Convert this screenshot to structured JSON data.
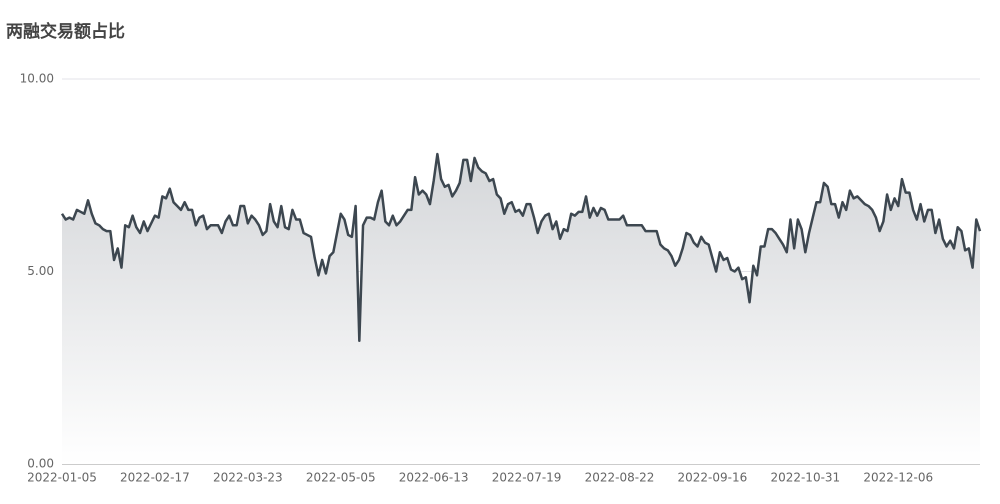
{
  "chart_data": {
    "type": "area-line",
    "title": "两融交易额占比",
    "categories": [
      "2022-01-05",
      null,
      null,
      null,
      null,
      null,
      null,
      null,
      null,
      null,
      null,
      null,
      null,
      null,
      null,
      null,
      null,
      null,
      null,
      null,
      null,
      null,
      null,
      null,
      null,
      "2022-02-17",
      null,
      null,
      null,
      null,
      null,
      null,
      null,
      null,
      null,
      null,
      null,
      null,
      null,
      null,
      null,
      null,
      null,
      null,
      null,
      null,
      null,
      null,
      null,
      null,
      "2022-03-23",
      null,
      null,
      null,
      null,
      null,
      null,
      null,
      null,
      null,
      null,
      null,
      null,
      null,
      null,
      null,
      null,
      null,
      null,
      null,
      null,
      null,
      null,
      null,
      null,
      "2022-05-05",
      null,
      null,
      null,
      null,
      null,
      null,
      null,
      null,
      null,
      null,
      null,
      null,
      null,
      null,
      null,
      null,
      null,
      null,
      null,
      null,
      null,
      null,
      null,
      null,
      "2022-06-13",
      null,
      null,
      null,
      null,
      null,
      null,
      null,
      null,
      null,
      null,
      null,
      null,
      null,
      null,
      null,
      null,
      null,
      null,
      null,
      null,
      null,
      null,
      null,
      null,
      "2022-07-19",
      null,
      null,
      null,
      null,
      null,
      null,
      null,
      null,
      null,
      null,
      null,
      null,
      null,
      null,
      null,
      null,
      null,
      null,
      null,
      null,
      null,
      null,
      null,
      null,
      "2022-08-22",
      null,
      null,
      null,
      null,
      null,
      null,
      null,
      null,
      null,
      null,
      null,
      null,
      null,
      null,
      null,
      null,
      null,
      null,
      null,
      null,
      null,
      null,
      null,
      null,
      "2022-09-16",
      null,
      null,
      null,
      null,
      null,
      null,
      null,
      null,
      null,
      null,
      null,
      null,
      null,
      null,
      null,
      null,
      null,
      null,
      null,
      null,
      null,
      null,
      null,
      null,
      "2022-10-31",
      null,
      null,
      null,
      null,
      null,
      null,
      null,
      null,
      null,
      null,
      null,
      null,
      null,
      null,
      null,
      null,
      null,
      null,
      null,
      null,
      null,
      null,
      null,
      null,
      "2022-12-06",
      null,
      null,
      null,
      null,
      null,
      null,
      null,
      null,
      null,
      null,
      null,
      null,
      null,
      null,
      null,
      null,
      null,
      null,
      null,
      null,
      null,
      null
    ],
    "values": [
      6.5,
      6.35,
      6.4,
      6.35,
      6.6,
      6.55,
      6.5,
      6.85,
      6.5,
      6.25,
      6.2,
      6.1,
      6.05,
      6.05,
      5.3,
      5.6,
      5.1,
      6.2,
      6.15,
      6.45,
      6.15,
      6.0,
      6.3,
      6.05,
      6.25,
      6.45,
      6.4,
      6.95,
      6.9,
      7.15,
      6.8,
      6.7,
      6.6,
      6.8,
      6.6,
      6.6,
      6.2,
      6.4,
      6.45,
      6.1,
      6.2,
      6.2,
      6.2,
      6.0,
      6.3,
      6.45,
      6.2,
      6.2,
      6.7,
      6.7,
      6.25,
      6.45,
      6.35,
      6.2,
      5.95,
      6.05,
      6.75,
      6.3,
      6.15,
      6.7,
      6.15,
      6.1,
      6.6,
      6.35,
      6.35,
      6.0,
      5.95,
      5.9,
      5.35,
      4.9,
      5.3,
      4.95,
      5.4,
      5.5,
      6.0,
      6.5,
      6.35,
      5.95,
      5.9,
      6.7,
      3.2,
      6.2,
      6.4,
      6.4,
      6.35,
      6.8,
      7.1,
      6.3,
      6.2,
      6.45,
      6.2,
      6.3,
      6.45,
      6.6,
      6.6,
      7.45,
      7.0,
      7.1,
      7.0,
      6.75,
      7.35,
      8.05,
      7.4,
      7.2,
      7.25,
      6.95,
      7.1,
      7.3,
      7.9,
      7.9,
      7.35,
      7.95,
      7.7,
      7.6,
      7.55,
      7.35,
      7.4,
      7.0,
      6.9,
      6.5,
      6.75,
      6.8,
      6.55,
      6.6,
      6.45,
      6.75,
      6.75,
      6.4,
      6.0,
      6.3,
      6.45,
      6.5,
      6.1,
      6.3,
      5.85,
      6.1,
      6.05,
      6.5,
      6.45,
      6.55,
      6.55,
      6.95,
      6.4,
      6.65,
      6.45,
      6.65,
      6.6,
      6.35,
      6.35,
      6.35,
      6.35,
      6.45,
      6.2,
      6.2,
      6.2,
      6.2,
      6.2,
      6.05,
      6.05,
      6.05,
      6.05,
      5.7,
      5.6,
      5.55,
      5.4,
      5.15,
      5.3,
      5.6,
      6.0,
      5.95,
      5.75,
      5.65,
      5.9,
      5.75,
      5.7,
      5.35,
      5.0,
      5.5,
      5.3,
      5.35,
      5.05,
      5.0,
      5.1,
      4.8,
      4.85,
      4.2,
      5.15,
      4.9,
      5.65,
      5.65,
      6.1,
      6.1,
      6.0,
      5.85,
      5.7,
      5.5,
      6.35,
      5.6,
      6.35,
      6.1,
      5.5,
      6.0,
      6.4,
      6.8,
      6.8,
      7.3,
      7.2,
      6.75,
      6.75,
      6.4,
      6.8,
      6.6,
      7.1,
      6.9,
      6.95,
      6.85,
      6.75,
      6.7,
      6.6,
      6.4,
      6.05,
      6.3,
      7.0,
      6.6,
      6.9,
      6.7,
      7.4,
      7.05,
      7.05,
      6.6,
      6.35,
      6.75,
      6.3,
      6.6,
      6.6,
      6.0,
      6.35,
      5.85,
      5.65,
      5.8,
      5.6,
      6.15,
      6.05,
      5.55,
      5.6,
      5.1,
      6.35,
      6.05
    ],
    "color": "#3d4750",
    "ylim": [
      0,
      10
    ],
    "yticks": [
      {
        "value": 0,
        "label": "0.00"
      },
      {
        "value": 5,
        "label": "5.00"
      },
      {
        "value": 10,
        "label": "10.00"
      }
    ],
    "grid": true
  }
}
